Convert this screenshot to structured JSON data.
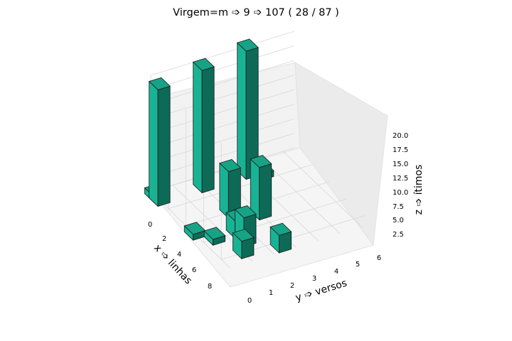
{
  "chart_data": {
    "type": "bar3d",
    "title": "Virgem=m ➩ 9 ➩ 107 ( 28 / 87 )",
    "xlabel": "x ➩ linhas",
    "ylabel": "y ➩ versos",
    "zlabel": "z ➩ ítimos",
    "x_ticks": [
      "0",
      "2",
      "4",
      "6",
      "8"
    ],
    "y_ticks": [
      "0",
      "1",
      "2",
      "3",
      "4",
      "5",
      "6"
    ],
    "z_ticks": [
      "2.5",
      "5.0",
      "7.5",
      "10.0",
      "12.5",
      "15.0",
      "17.5",
      "20.0"
    ],
    "xlim": [
      0,
      9
    ],
    "ylim": [
      0,
      6.5
    ],
    "zlim": [
      0,
      21
    ],
    "bar_color": "#1abc9c",
    "bars": [
      {
        "x": 1,
        "y": 0,
        "z": 20
      },
      {
        "x": 1,
        "y": 2,
        "z": 21
      },
      {
        "x": 1,
        "y": 4,
        "z": 22
      },
      {
        "x": 0.5,
        "y": 0,
        "z": 1
      },
      {
        "x": 1.5,
        "y": 4.5,
        "z": 1
      },
      {
        "x": 5,
        "y": 0,
        "z": 1
      },
      {
        "x": 6,
        "y": 0.5,
        "z": 1
      },
      {
        "x": 4,
        "y": 2,
        "z": 8
      },
      {
        "x": 5,
        "y": 3,
        "z": 9
      },
      {
        "x": 6,
        "y": 1.5,
        "z": 3
      },
      {
        "x": 7,
        "y": 1.5,
        "z": 5
      },
      {
        "x": 8.5,
        "y": 2.5,
        "z": 3
      },
      {
        "x": 8,
        "y": 1,
        "z": 3
      }
    ]
  }
}
